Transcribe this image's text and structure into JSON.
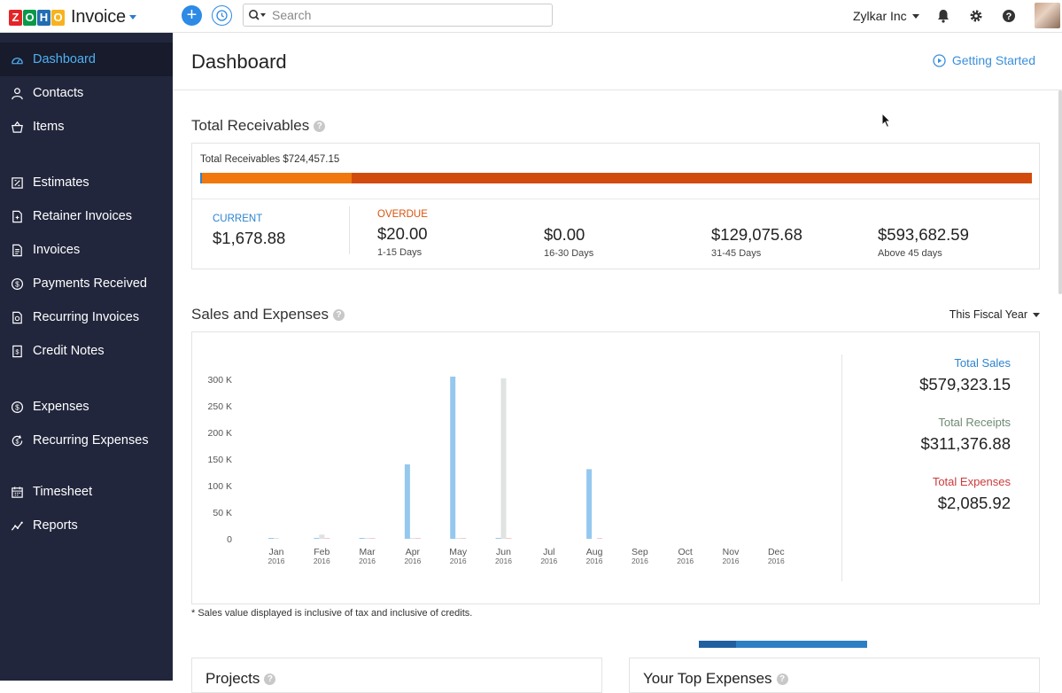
{
  "app": {
    "name": "Invoice",
    "logo_letters": [
      "Z",
      "O",
      "H",
      "O"
    ]
  },
  "topbar": {
    "search_placeholder": "Search",
    "org_name": "Zylkar Inc"
  },
  "sidebar": {
    "items": [
      {
        "label": "Dashboard",
        "icon": "dashboard-icon",
        "active": true
      },
      {
        "label": "Contacts",
        "icon": "contacts-icon"
      },
      {
        "label": "Items",
        "icon": "items-icon"
      },
      {
        "label": "Estimates",
        "icon": "estimates-icon"
      },
      {
        "label": "Retainer Invoices",
        "icon": "retainer-invoices-icon"
      },
      {
        "label": "Invoices",
        "icon": "invoices-icon"
      },
      {
        "label": "Payments Received",
        "icon": "payments-icon"
      },
      {
        "label": "Recurring Invoices",
        "icon": "recurring-invoices-icon"
      },
      {
        "label": "Credit Notes",
        "icon": "credit-notes-icon"
      },
      {
        "label": "Expenses",
        "icon": "expenses-icon"
      },
      {
        "label": "Recurring Expenses",
        "icon": "recurring-expenses-icon"
      },
      {
        "label": "Timesheet",
        "icon": "timesheet-icon"
      },
      {
        "label": "Reports",
        "icon": "reports-icon"
      }
    ]
  },
  "page": {
    "title": "Dashboard",
    "getting_started": "Getting Started"
  },
  "receivables": {
    "title": "Total Receivables",
    "total_text": "Total Receivables $724,457.15",
    "current_fraction": 0.0023,
    "overdue_1_15_fraction": 0.18,
    "current": {
      "label": "CURRENT",
      "amount": "$1,678.88"
    },
    "overdue_label": "OVERDUE",
    "buckets": [
      {
        "amount": "$20.00",
        "range": "1-15 Days"
      },
      {
        "amount": "$0.00",
        "range": "16-30 Days"
      },
      {
        "amount": "$129,075.68",
        "range": "31-45 Days"
      },
      {
        "amount": "$593,682.59",
        "range": "Above 45 days"
      }
    ],
    "colors": {
      "current": "#2c83d0",
      "overdue": "#d14c0c",
      "overdue_label": "#d9530c",
      "current_label": "#2c83d0"
    }
  },
  "sales": {
    "title": "Sales and Expenses",
    "period": "This Fiscal Year",
    "totals": [
      {
        "label": "Total Sales",
        "value": "$579,323.15",
        "color": "#2c83d0"
      },
      {
        "label": "Total Receipts",
        "value": "$311,376.88",
        "color": "#6f8a74"
      },
      {
        "label": "Total Expenses",
        "value": "$2,085.92",
        "color": "#cc3b3b"
      }
    ],
    "footnote": "* Sales value displayed is inclusive of tax and inclusive of credits."
  },
  "chart_data": {
    "type": "bar",
    "categories": [
      "Jan 2016",
      "Feb 2016",
      "Mar 2016",
      "Apr 2016",
      "May 2016",
      "Jun 2016",
      "Jul 2016",
      "Aug 2016",
      "Sep 2016",
      "Oct 2016",
      "Nov 2016",
      "Dec 2016"
    ],
    "month_labels": [
      "Jan",
      "Feb",
      "Mar",
      "Apr",
      "May",
      "Jun",
      "Jul",
      "Aug",
      "Sep",
      "Oct",
      "Nov",
      "Dec"
    ],
    "year_label": "2016",
    "yticks": [
      "0",
      "50 K",
      "100 K",
      "150 K",
      "200 K",
      "250 K",
      "300 K"
    ],
    "ylim": [
      0,
      300000
    ],
    "series": [
      {
        "values": [
          1500,
          500,
          500,
          140000,
          305000,
          1000,
          0,
          131000,
          0,
          0,
          0,
          0
        ],
        "color": "#95c8ef"
      },
      {
        "values": [
          1000,
          8000,
          500,
          500,
          1000,
          302000,
          0,
          0,
          0,
          0,
          0,
          0
        ],
        "color": "#dfe3e2"
      },
      {
        "values": [
          0,
          200,
          200,
          300,
          500,
          200,
          0,
          300,
          0,
          0,
          0,
          0
        ],
        "color": "#f4c7c7"
      }
    ]
  },
  "panels": {
    "projects": "Projects",
    "top_expenses": "Your Top Expenses"
  }
}
